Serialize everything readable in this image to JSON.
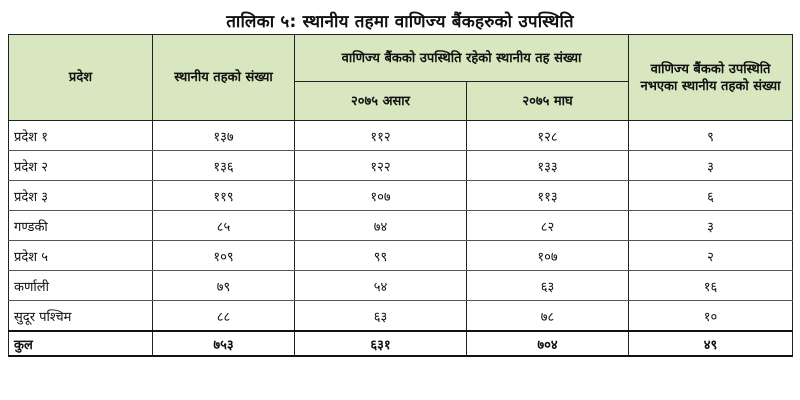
{
  "title": "तालिका ५: स्थानीय तहमा वाणिज्य बैंकहरुको उपस्थिति",
  "headers": {
    "province": "प्रदेश",
    "local_levels": "स्थानीय तहको संख्या",
    "presence_group": "वाणिज्य बैंकको उपस्थिति रहेको स्थानीय तह संख्या",
    "sub_ashar": "२०७५ असार",
    "sub_magh": "२०७५ माघ",
    "absent": "वाणिज्य बैंकको उपस्थिति नभएका स्थानीय तहको संख्या"
  },
  "rows": [
    {
      "name": "प्रदेश १",
      "levels": "१३७",
      "ashar": "११२",
      "magh": "१२८",
      "absent": "९"
    },
    {
      "name": "प्रदेश २",
      "levels": "१३६",
      "ashar": "१२२",
      "magh": "१३३",
      "absent": "३"
    },
    {
      "name": "प्रदेश ३",
      "levels": "११९",
      "ashar": "१०७",
      "magh": "११३",
      "absent": "६"
    },
    {
      "name": "गण्डकी",
      "levels": "८५",
      "ashar": "७४",
      "magh": "८२",
      "absent": "३"
    },
    {
      "name": "प्रदेश ५",
      "levels": "१०९",
      "ashar": "९९",
      "magh": "१०७",
      "absent": "२"
    },
    {
      "name": "कर्णाली",
      "levels": "७९",
      "ashar": "५४",
      "magh": "६३",
      "absent": "१६"
    },
    {
      "name": "सुदूर पश्चिम",
      "levels": "८८",
      "ashar": "६३",
      "magh": "७८",
      "absent": "१०"
    }
  ],
  "total": {
    "name": "कुल",
    "levels": "७५३",
    "ashar": "६३१",
    "magh": "७०४",
    "absent": "४९"
  },
  "colors": {
    "header_bg": "#d8e7bf",
    "border": "#222222"
  }
}
